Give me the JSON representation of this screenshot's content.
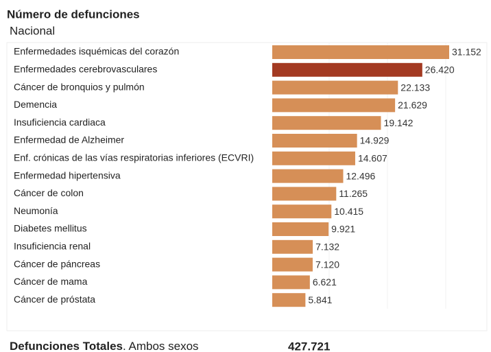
{
  "chart_data": {
    "type": "bar",
    "title": "Número de defunciones",
    "subtitle": "Nacional",
    "categories": [
      "Enfermedades isquémicas del corazón",
      "Enfermedades cerebrovasculares",
      "Cáncer de bronquios y pulmón",
      "Demencia",
      "Insuficiencia cardiaca",
      "Enfermedad de Alzheimer",
      "Enf. crónicas de las vías respiratorias inferiores (ECVRI)",
      "Enfermedad hipertensiva",
      "Cáncer de colon",
      "Neumonía",
      "Diabetes mellitus",
      "Insuficiencia renal",
      "Cáncer de páncreas",
      "Cáncer de mama",
      "Cáncer de próstata"
    ],
    "values": [
      31152,
      26420,
      22133,
      21629,
      19142,
      14929,
      14607,
      12496,
      11265,
      10415,
      9921,
      7132,
      7120,
      6621,
      5841
    ],
    "value_labels": [
      "31.152",
      "26.420",
      "22.133",
      "21.629",
      "19.142",
      "14.929",
      "14.607",
      "12.496",
      "11.265",
      "10.415",
      "9.921",
      "7.132",
      "7.120",
      "6.621",
      "5.841"
    ],
    "colors": [
      "#d68f57",
      "#a33a22",
      "#d68f57",
      "#d68f57",
      "#d68f57",
      "#d68f57",
      "#d68f57",
      "#d68f57",
      "#d68f57",
      "#d68f57",
      "#d68f57",
      "#d68f57",
      "#d68f57",
      "#d68f57",
      "#d68f57"
    ],
    "footer_label": "Defunciones Totales",
    "footer_sublabel": ". Ambos sexos",
    "total": "427.721"
  }
}
